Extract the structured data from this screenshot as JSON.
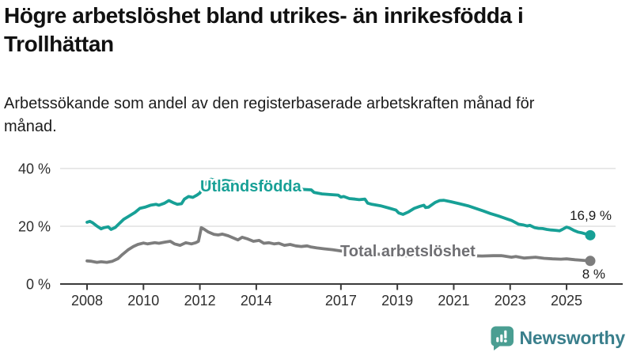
{
  "header": {
    "title": "Högre arbetslöshet bland utrikes- än inrikesfödda i Trollhättan",
    "subtitle": "Arbetssökande som andel av den registerbaserade arbetskraften månad för månad."
  },
  "chart_data": {
    "type": "line",
    "title": "Högre arbetslöshet bland utrikes- än inrikesfödda i Trollhättan",
    "subtitle": "Arbetssökande som andel av den registerbaserade arbetskraften månad för månad.",
    "xlabel": "",
    "ylabel": "",
    "x_range": [
      2007.8,
      2026.2
    ],
    "ylim": [
      0,
      44
    ],
    "grid": "horizontal",
    "legend_position": "inline-labels",
    "x_ticks": [
      {
        "value": 2008,
        "label": "2008"
      },
      {
        "value": 2010,
        "label": "2010"
      },
      {
        "value": 2012,
        "label": "2012"
      },
      {
        "value": 2014,
        "label": "2014"
      },
      {
        "value": 2017,
        "label": "2017"
      },
      {
        "value": 2019,
        "label": "2019"
      },
      {
        "value": 2021,
        "label": "2021"
      },
      {
        "value": 2023,
        "label": "2023"
      },
      {
        "value": 2025,
        "label": "2025"
      }
    ],
    "y_ticks": [
      {
        "value": 40,
        "label": "40 %"
      },
      {
        "value": 20,
        "label": "20 %"
      },
      {
        "value": 0,
        "label": "0 %"
      }
    ],
    "series": [
      {
        "name": "Utlandsfödda",
        "color": "#17a096",
        "end_label": "16,9 %",
        "end_value": 16.9,
        "points": [
          [
            2008.0,
            21.4
          ],
          [
            2008.1,
            21.7
          ],
          [
            2008.2,
            21.2
          ],
          [
            2008.33,
            20.2
          ],
          [
            2008.5,
            19.1
          ],
          [
            2008.6,
            19.5
          ],
          [
            2008.75,
            19.8
          ],
          [
            2008.85,
            18.9
          ],
          [
            2009.0,
            19.6
          ],
          [
            2009.12,
            20.7
          ],
          [
            2009.3,
            22.4
          ],
          [
            2009.5,
            23.6
          ],
          [
            2009.7,
            24.8
          ],
          [
            2009.87,
            26.2
          ],
          [
            2010.05,
            26.6
          ],
          [
            2010.25,
            27.3
          ],
          [
            2010.45,
            27.6
          ],
          [
            2010.55,
            27.3
          ],
          [
            2010.75,
            28.0
          ],
          [
            2010.9,
            28.9
          ],
          [
            2011.05,
            28.2
          ],
          [
            2011.2,
            27.6
          ],
          [
            2011.35,
            27.8
          ],
          [
            2011.45,
            29.4
          ],
          [
            2011.6,
            30.3
          ],
          [
            2011.75,
            30.0
          ],
          [
            2011.9,
            30.8
          ],
          [
            2012.0,
            31.5
          ],
          [
            2012.1,
            33.3
          ],
          [
            2012.2,
            34.8
          ],
          [
            2012.3,
            35.9
          ],
          [
            2012.4,
            36.3
          ],
          [
            2012.55,
            35.8
          ],
          [
            2012.7,
            35.6
          ],
          [
            2012.9,
            35.9
          ],
          [
            2013.1,
            35.6
          ],
          [
            2013.3,
            35.1
          ],
          [
            2013.5,
            34.6
          ],
          [
            2013.75,
            34.1
          ],
          [
            2014.0,
            33.6
          ],
          [
            2014.2,
            33.2
          ],
          [
            2014.35,
            33.0
          ],
          [
            2014.5,
            33.6
          ],
          [
            2014.7,
            33.4
          ],
          [
            2015.0,
            33.2
          ],
          [
            2015.3,
            33.0
          ],
          [
            2015.6,
            32.8
          ],
          [
            2015.95,
            32.6
          ],
          [
            2016.05,
            31.7
          ],
          [
            2016.33,
            31.2
          ],
          [
            2016.6,
            31.0
          ],
          [
            2016.9,
            30.8
          ],
          [
            2017.0,
            30.1
          ],
          [
            2017.1,
            30.3
          ],
          [
            2017.3,
            29.6
          ],
          [
            2017.5,
            29.4
          ],
          [
            2017.65,
            29.2
          ],
          [
            2017.85,
            29.4
          ],
          [
            2017.95,
            28.0
          ],
          [
            2018.1,
            27.6
          ],
          [
            2018.4,
            27.1
          ],
          [
            2018.7,
            26.3
          ],
          [
            2018.95,
            25.6
          ],
          [
            2019.05,
            24.6
          ],
          [
            2019.2,
            24.1
          ],
          [
            2019.4,
            25.0
          ],
          [
            2019.6,
            26.2
          ],
          [
            2019.8,
            26.9
          ],
          [
            2019.94,
            27.3
          ],
          [
            2020.0,
            26.5
          ],
          [
            2020.1,
            26.6
          ],
          [
            2020.2,
            27.3
          ],
          [
            2020.35,
            28.3
          ],
          [
            2020.5,
            28.9
          ],
          [
            2020.65,
            29.0
          ],
          [
            2020.9,
            28.5
          ],
          [
            2021.2,
            27.8
          ],
          [
            2021.5,
            27.1
          ],
          [
            2021.8,
            26.1
          ],
          [
            2022.05,
            25.3
          ],
          [
            2022.3,
            24.4
          ],
          [
            2022.6,
            23.5
          ],
          [
            2022.9,
            22.5
          ],
          [
            2023.05,
            22.0
          ],
          [
            2023.17,
            21.4
          ],
          [
            2023.3,
            20.7
          ],
          [
            2023.45,
            20.5
          ],
          [
            2023.6,
            20.1
          ],
          [
            2023.7,
            20.3
          ],
          [
            2023.87,
            19.5
          ],
          [
            2024.0,
            19.3
          ],
          [
            2024.15,
            19.2
          ],
          [
            2024.3,
            18.9
          ],
          [
            2024.45,
            18.7
          ],
          [
            2024.6,
            18.6
          ],
          [
            2024.75,
            18.4
          ],
          [
            2024.85,
            18.9
          ],
          [
            2025.0,
            19.7
          ],
          [
            2025.1,
            19.4
          ],
          [
            2025.25,
            18.6
          ],
          [
            2025.4,
            18.0
          ],
          [
            2025.55,
            17.7
          ],
          [
            2025.7,
            17.3
          ],
          [
            2025.84,
            16.9
          ]
        ]
      },
      {
        "name": "Total arbetslöshet",
        "color": "#7d7d7d",
        "end_label": "8 %",
        "end_value": 8.0,
        "points": [
          [
            2008.0,
            8.0
          ],
          [
            2008.15,
            7.9
          ],
          [
            2008.35,
            7.5
          ],
          [
            2008.5,
            7.7
          ],
          [
            2008.7,
            7.5
          ],
          [
            2008.9,
            7.9
          ],
          [
            2009.1,
            8.8
          ],
          [
            2009.25,
            10.2
          ],
          [
            2009.45,
            11.8
          ],
          [
            2009.64,
            13.0
          ],
          [
            2009.8,
            13.7
          ],
          [
            2010.0,
            14.2
          ],
          [
            2010.15,
            13.9
          ],
          [
            2010.4,
            14.3
          ],
          [
            2010.55,
            14.1
          ],
          [
            2010.75,
            14.5
          ],
          [
            2010.95,
            14.8
          ],
          [
            2011.1,
            13.9
          ],
          [
            2011.3,
            13.4
          ],
          [
            2011.5,
            14.3
          ],
          [
            2011.7,
            13.9
          ],
          [
            2011.85,
            14.3
          ],
          [
            2011.95,
            14.8
          ],
          [
            2012.05,
            19.5
          ],
          [
            2012.15,
            19.0
          ],
          [
            2012.3,
            18.0
          ],
          [
            2012.5,
            17.2
          ],
          [
            2012.65,
            17.0
          ],
          [
            2012.8,
            17.3
          ],
          [
            2013.0,
            16.7
          ],
          [
            2013.2,
            15.9
          ],
          [
            2013.35,
            15.3
          ],
          [
            2013.5,
            16.2
          ],
          [
            2013.7,
            15.6
          ],
          [
            2013.9,
            14.8
          ],
          [
            2014.1,
            15.1
          ],
          [
            2014.27,
            14.1
          ],
          [
            2014.45,
            14.3
          ],
          [
            2014.64,
            13.9
          ],
          [
            2014.8,
            14.1
          ],
          [
            2015.0,
            13.4
          ],
          [
            2015.2,
            13.7
          ],
          [
            2015.4,
            13.2
          ],
          [
            2015.6,
            13.0
          ],
          [
            2015.8,
            13.2
          ],
          [
            2015.95,
            12.8
          ],
          [
            2016.15,
            12.5
          ],
          [
            2016.4,
            12.2
          ],
          [
            2016.7,
            11.9
          ],
          [
            2017.1,
            11.3
          ],
          [
            2017.5,
            11.0
          ],
          [
            2018.0,
            10.6
          ],
          [
            2018.5,
            10.2
          ],
          [
            2019.0,
            9.9
          ],
          [
            2019.5,
            9.7
          ],
          [
            2020.0,
            10.3
          ],
          [
            2020.4,
            10.8
          ],
          [
            2020.8,
            10.5
          ],
          [
            2021.2,
            10.1
          ],
          [
            2021.6,
            9.8
          ],
          [
            2022.0,
            9.7
          ],
          [
            2022.4,
            9.8
          ],
          [
            2022.7,
            9.8
          ],
          [
            2023.05,
            9.3
          ],
          [
            2023.2,
            9.5
          ],
          [
            2023.5,
            9.0
          ],
          [
            2023.9,
            9.3
          ],
          [
            2024.2,
            8.9
          ],
          [
            2024.5,
            8.7
          ],
          [
            2024.8,
            8.6
          ],
          [
            2025.0,
            8.7
          ],
          [
            2025.3,
            8.4
          ],
          [
            2025.6,
            8.2
          ],
          [
            2025.84,
            8.0
          ]
        ]
      }
    ],
    "colors": {
      "gridline": "#d9d9d9",
      "axis": "#3a3a3a",
      "tick_label": "#2e2e2e",
      "end_label": "#1a1a1a",
      "series_label_gray": "#6f6f73"
    }
  },
  "footer": {
    "brand": "Newsworthy",
    "logo_icon": "bar-chart-speech-bubble-icon",
    "brand_color": "#3a7f8c",
    "logo_color": "#4a9e92"
  }
}
